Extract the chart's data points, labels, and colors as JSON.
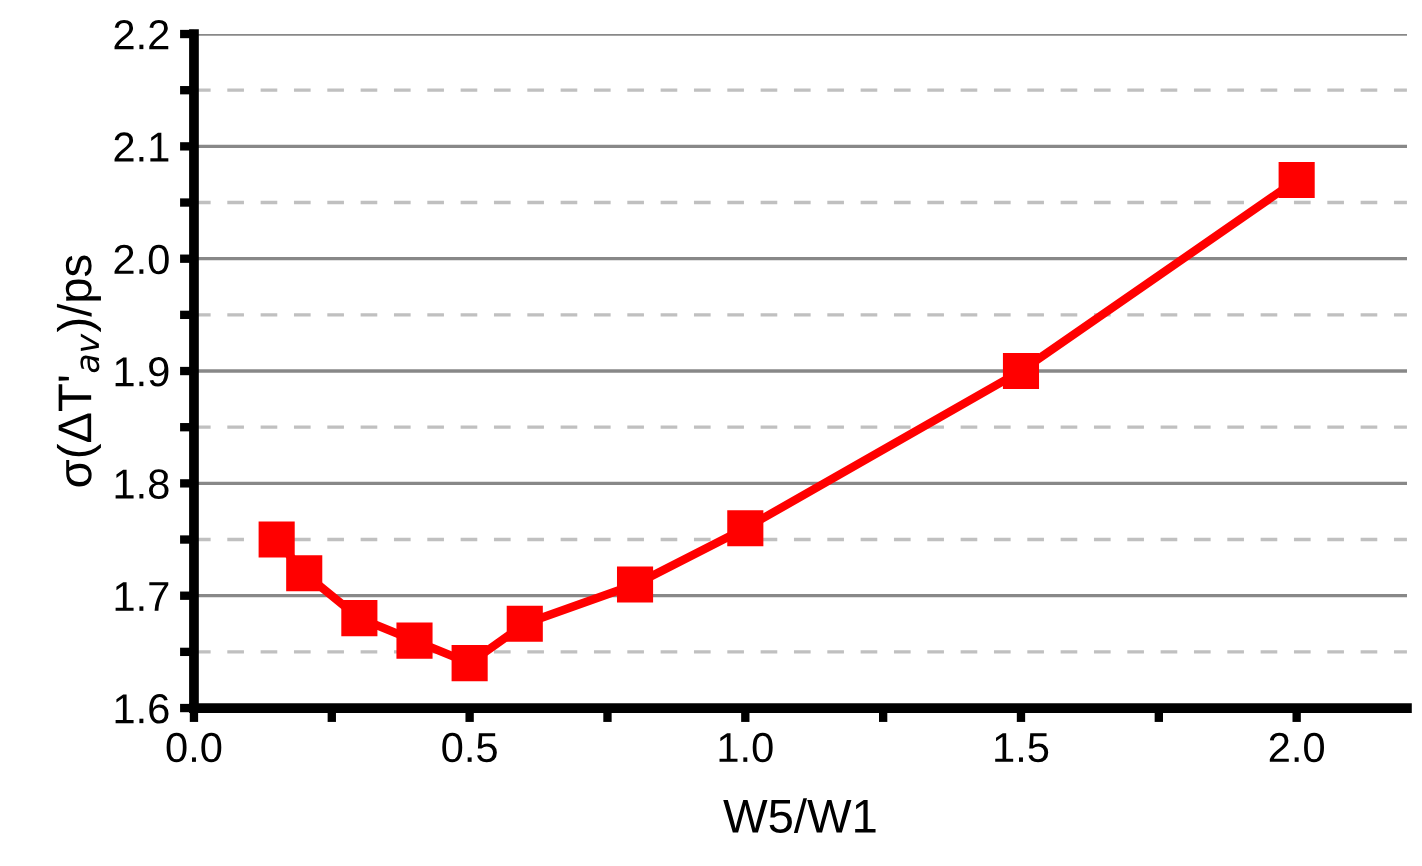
{
  "chart_data": {
    "type": "line",
    "xlabel": "W5/W1",
    "ylabel": "σ(ΔT'$_{av}$)/ps",
    "x": [
      0.15,
      0.2,
      0.3,
      0.4,
      0.5,
      0.6,
      0.8,
      1.0,
      1.5,
      2.0
    ],
    "series": [
      {
        "color": "#ff0000",
        "values": [
          1.75,
          1.72,
          1.68,
          1.66,
          1.64,
          1.675,
          1.71,
          1.76,
          1.9,
          2.07
        ]
      }
    ],
    "marker": "square",
    "line_style": "solid",
    "grid": "y",
    "xlim": [
      0,
      2.2
    ],
    "ylim": [
      1.6,
      2.2
    ],
    "xticks": [
      {
        "value": 0,
        "label": "0.0"
      },
      {
        "value": 0.25,
        "label": null
      },
      0.5,
      {
        "value": 0.75,
        "label": null
      },
      {
        "value": 1,
        "label": "1.0"
      },
      {
        "value": 1.25,
        "label": null
      },
      1.5,
      {
        "value": 1.75,
        "label": null
      },
      {
        "value": 2,
        "label": "2.0"
      }
    ],
    "yticks": [
      1.6,
      {
        "value": 1.65,
        "label": null
      },
      1.7,
      {
        "value": 1.75,
        "label": null
      },
      1.8,
      {
        "value": 1.85,
        "label": null
      },
      1.9,
      {
        "value": 1.95,
        "label": null
      },
      {
        "value": 2,
        "label": "2.0"
      },
      {
        "value": 2.05,
        "label": null
      },
      2.1,
      {
        "value": 2.15,
        "label": null
      },
      2.2
    ]
  }
}
